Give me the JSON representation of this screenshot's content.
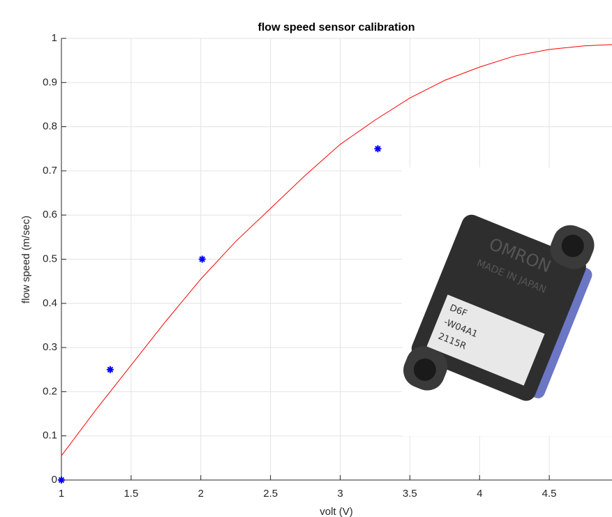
{
  "chart_data": {
    "type": "scatter",
    "title": "flow speed sensor calibration",
    "x_label": "volt (V)",
    "y_label": "flow speed (m/sec)",
    "xlim": [
      1,
      4.95
    ],
    "ylim": [
      0,
      1
    ],
    "xticks": [
      1,
      1.5,
      2,
      2.5,
      3,
      3.5,
      4,
      4.5
    ],
    "yticks": [
      0,
      0.1,
      0.2,
      0.3,
      0.4,
      0.5,
      0.6,
      0.7,
      0.8,
      0.9,
      1
    ],
    "grid": true,
    "series": [
      {
        "style": "marker",
        "marker": "*",
        "color": "#0000ff",
        "x": [
          1,
          1.35,
          2.01,
          3.27
        ],
        "y": [
          0,
          0.25,
          0.5,
          0.75
        ]
      },
      {
        "style": "line",
        "color": "#ff0000",
        "x": [
          1,
          1.25,
          1.5,
          1.75,
          2,
          2.25,
          2.5,
          2.75,
          3,
          3.25,
          3.5,
          3.75,
          4,
          4.25,
          4.5,
          4.75,
          4.95
        ],
        "y": [
          0.055,
          0.16,
          0.26,
          0.36,
          0.455,
          0.54,
          0.615,
          0.69,
          0.76,
          0.815,
          0.865,
          0.905,
          0.935,
          0.96,
          0.975,
          0.983,
          0.986
        ]
      }
    ],
    "photo_text": [
      "OMRON",
      "MADE IN JAPAN",
      "D6F",
      "-W04A1",
      "2115R"
    ]
  }
}
